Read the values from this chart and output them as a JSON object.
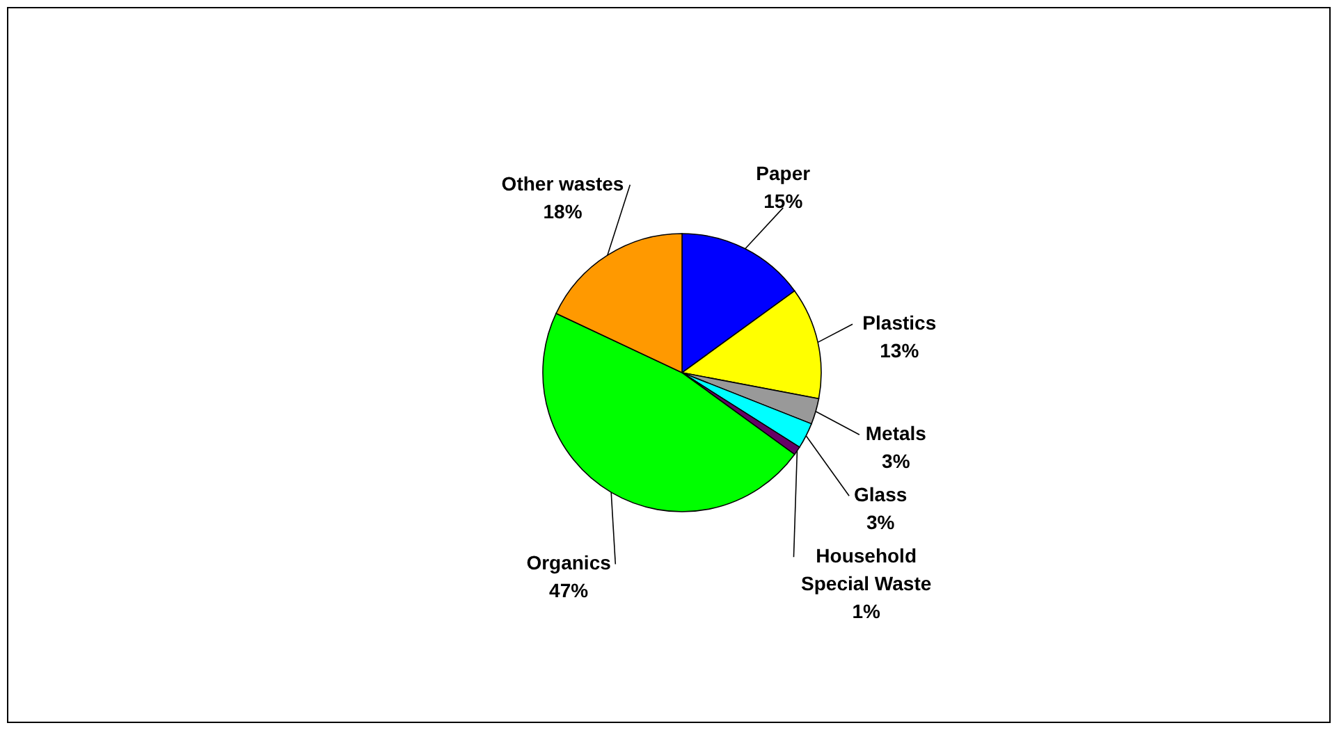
{
  "chart_data": {
    "type": "pie",
    "categories": [
      "Paper",
      "Plastics",
      "Metals",
      "Glass",
      "Household Special Waste",
      "Organics",
      "Other wastes"
    ],
    "values": [
      15,
      13,
      3,
      3,
      1,
      47,
      18
    ],
    "colors": [
      "#0000ff",
      "#ffff00",
      "#999999",
      "#00ffff",
      "#660066",
      "#00ff00",
      "#ff9900"
    ],
    "value_labels": [
      "15%",
      "13%",
      "3%",
      "3%",
      "1%",
      "47%",
      "18%"
    ]
  }
}
